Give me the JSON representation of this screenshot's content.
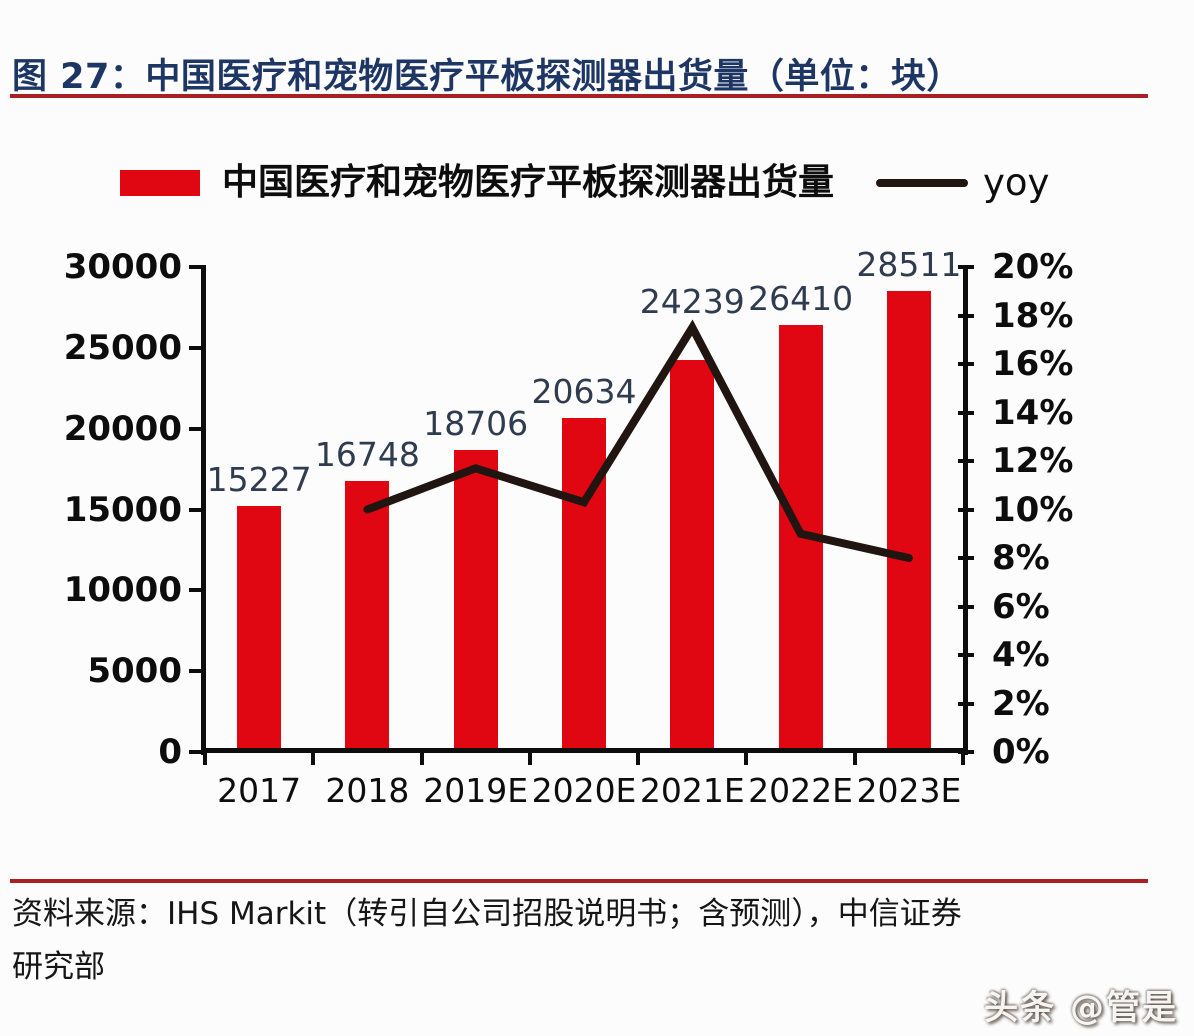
{
  "figure": {
    "title": "图 27：中国医疗和宠物医疗平板探测器出货量（单位：块）",
    "source_lines": [
      "资料来源：IHS Markit（转引自公司招股说明书；含预测），中信证券",
      "研究部"
    ],
    "watermark": "头条 @管是"
  },
  "legend": {
    "bar_label": "中国医疗和宠物医疗平板探测器出货量",
    "line_label": "yoy"
  },
  "colors": {
    "bar": "#E00713",
    "line": "#211511",
    "title": "#1E3664",
    "rule": "#AA1F22",
    "data_label": "#2F3B4E",
    "axis": "#0D0D0D"
  },
  "chart_data": {
    "type": "bar+line",
    "title": "中国医疗和宠物医疗平板探测器出货量（单位：块）",
    "categories": [
      "2017",
      "2018",
      "2019E",
      "2020E",
      "2021E",
      "2022E",
      "2023E"
    ],
    "series": [
      {
        "name": "中国医疗和宠物医疗平板探测器出货量",
        "type": "bar",
        "axis": "left",
        "unit": "块",
        "values": [
          15227,
          16748,
          18706,
          20634,
          24239,
          26410,
          28511
        ]
      },
      {
        "name": "yoy",
        "type": "line",
        "axis": "right",
        "unit": "%",
        "values": [
          null,
          10.0,
          11.7,
          10.3,
          17.5,
          9.0,
          8.0
        ]
      }
    ],
    "bar_labels": [
      "15227",
      "16748",
      "18706",
      "20634",
      "24239",
      "26410",
      "28511"
    ],
    "left_axis": {
      "min": 0,
      "max": 30000,
      "step": 5000,
      "ticks": [
        "0",
        "5000",
        "10000",
        "15000",
        "20000",
        "25000",
        "30000"
      ]
    },
    "right_axis": {
      "min": 0,
      "max": 20,
      "step": 2,
      "ticks": [
        "0%",
        "2%",
        "4%",
        "6%",
        "8%",
        "10%",
        "12%",
        "14%",
        "16%",
        "18%",
        "20%"
      ]
    },
    "grid": false,
    "legend_position": "top"
  }
}
